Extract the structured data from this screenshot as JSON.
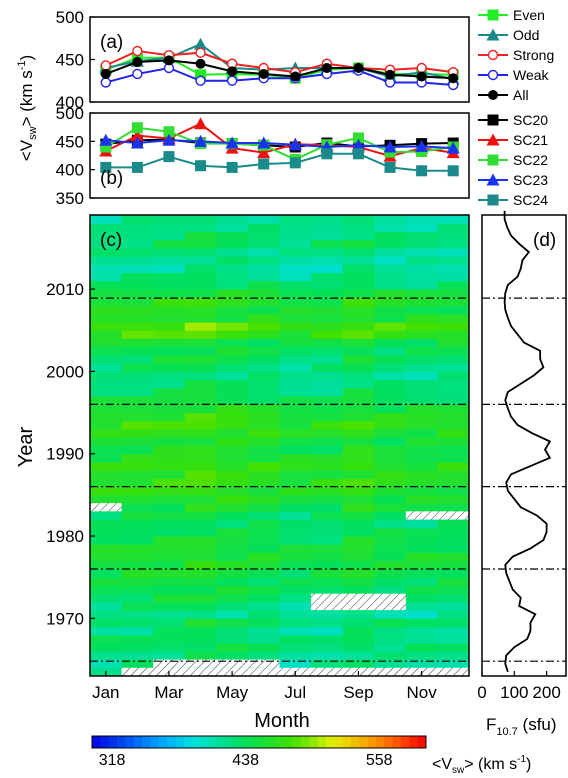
{
  "chart_data": [
    {
      "type": "line",
      "panel_label": "(a)",
      "ylabel": "<V_sw> (km s^-1)",
      "ylim": [
        400,
        500
      ],
      "yticks": [
        "400",
        "450",
        "500"
      ],
      "x": [
        1,
        2,
        3,
        4,
        5,
        6,
        7,
        8,
        9,
        10,
        11,
        12
      ],
      "series": [
        {
          "name": "Even",
          "color": "#22ee22",
          "marker": "square",
          "values": [
            438,
            452,
            452,
            432,
            433,
            432,
            428,
            438,
            440,
            433,
            433,
            432
          ]
        },
        {
          "name": "Odd",
          "color": "#1a8a8a",
          "marker": "triangle",
          "values": [
            440,
            448,
            452,
            468,
            440,
            438,
            440,
            440,
            440,
            430,
            435,
            427
          ]
        },
        {
          "name": "Strong",
          "color": "#ee2222",
          "marker": "open-circle",
          "values": [
            443,
            460,
            455,
            458,
            445,
            440,
            435,
            445,
            440,
            438,
            440,
            435
          ]
        },
        {
          "name": "Weak",
          "color": "#2222ee",
          "marker": "open-circle",
          "values": [
            423,
            433,
            440,
            425,
            425,
            428,
            428,
            433,
            437,
            423,
            423,
            420
          ]
        },
        {
          "name": "All",
          "color": "#000000",
          "marker": "circle",
          "values": [
            433,
            447,
            449,
            445,
            436,
            433,
            430,
            440,
            440,
            432,
            430,
            428
          ]
        }
      ]
    },
    {
      "type": "line",
      "panel_label": "(b)",
      "ylim": [
        350,
        500
      ],
      "yticks": [
        "350",
        "400",
        "450",
        "500"
      ],
      "x": [
        1,
        2,
        3,
        4,
        5,
        6,
        7,
        8,
        9,
        10,
        11,
        12
      ],
      "series": [
        {
          "name": "SC20",
          "color": "#000000",
          "marker": "square",
          "values": [
            445,
            452,
            453,
            447,
            446,
            443,
            440,
            447,
            441,
            443,
            446,
            447
          ]
        },
        {
          "name": "SC21",
          "color": "#ee1111",
          "marker": "triangle",
          "values": [
            433,
            460,
            455,
            481,
            438,
            430,
            445,
            443,
            440,
            424,
            438,
            430
          ]
        },
        {
          "name": "SC22",
          "color": "#33dd33",
          "marker": "square",
          "values": [
            440,
            474,
            467,
            446,
            446,
            443,
            418,
            444,
            456,
            431,
            432,
            440
          ]
        },
        {
          "name": "SC23",
          "color": "#1a33ee",
          "marker": "triangle",
          "values": [
            452,
            447,
            452,
            450,
            447,
            447,
            444,
            440,
            443,
            440,
            441,
            438
          ]
        },
        {
          "name": "SC24",
          "color": "#1a8a8a",
          "marker": "square",
          "values": [
            404,
            404,
            423,
            407,
            404,
            410,
            412,
            428,
            428,
            404,
            398,
            398
          ]
        }
      ]
    },
    {
      "type": "heatmap",
      "panel_label": "(c)",
      "xlabel": "Month",
      "ylabel": "Year",
      "x_tick_labels": [
        "Jan",
        "Mar",
        "May",
        "Jul",
        "Sep",
        "Nov"
      ],
      "x_tick_months": [
        1,
        3,
        5,
        7,
        9,
        11
      ],
      "y_tick_labels": [
        "1970",
        "1980",
        "1990",
        "2000",
        "2010"
      ],
      "y_tick_years": [
        1970,
        1980,
        1990,
        2000,
        2010
      ],
      "year_range": [
        1963,
        2019
      ],
      "ref_lines_years": [
        1964.8,
        1976.0,
        1986.0,
        1996.0,
        2008.9
      ],
      "colorbar": {
        "min": 300,
        "max": 600,
        "tick_values": [
          318,
          438,
          558
        ],
        "tick_labels": [
          "318",
          "438",
          "558"
        ],
        "label": "<V_sw> (km s^-1)"
      },
      "hatched_cells": [
        {
          "year_from": 1963,
          "year_to": 1964,
          "month_from": 2,
          "month_to": 12
        },
        {
          "year_from": 1964,
          "year_to": 1965,
          "month_from": 3,
          "month_to": 6
        },
        {
          "year_from": 1971,
          "year_to": 1973,
          "month_from": 8,
          "month_to": 10
        },
        {
          "year_from": 1982,
          "year_to": 1983,
          "month_from": 11,
          "month_to": 12
        },
        {
          "year_from": 1983,
          "year_to": 1984,
          "month_from": 1,
          "month_to": 1
        }
      ],
      "year_offsets": [
        -30,
        -22,
        -18,
        -10,
        -12,
        -20,
        -8,
        -25,
        -14,
        -6,
        -2,
        0,
        4,
        10,
        12,
        8,
        2,
        -4,
        -10,
        -5,
        6,
        14,
        22,
        26,
        20,
        28,
        16,
        8,
        12,
        20,
        28,
        22,
        10,
        2,
        -8,
        -16,
        -20,
        -12,
        -6,
        -2,
        6,
        30,
        38,
        16,
        12,
        20,
        8,
        -10,
        -18,
        -30,
        -26,
        -20,
        -8,
        -14,
        -20,
        -24
      ],
      "month_offsets": [
        0,
        4,
        6,
        12,
        6,
        2,
        -6,
        -4,
        8,
        -2,
        -4,
        -2
      ]
    },
    {
      "type": "line",
      "panel_label": "(d)",
      "xlabel": "F10.7 (sfu)",
      "xlim": [
        0,
        260
      ],
      "xticks": [
        "0",
        "100",
        "200"
      ],
      "year_range": [
        1963,
        2019
      ],
      "ref_lines_years": [
        1964.8,
        1976.0,
        1986.0,
        1996.0,
        2008.9
      ],
      "series": [
        {
          "name": "F10.7",
          "color": "#000000",
          "years": [
            1963,
            1964,
            1965,
            1966,
            1967,
            1968,
            1969,
            1970,
            1971,
            1972,
            1973,
            1974,
            1975,
            1976,
            1977,
            1978,
            1979,
            1980,
            1981,
            1982,
            1983,
            1984,
            1985,
            1986,
            1987,
            1988,
            1989,
            1990,
            1991,
            1992,
            1993,
            1994,
            1995,
            1996,
            1997,
            1998,
            1999,
            2000,
            2001,
            2002,
            2003,
            2004,
            2005,
            2006,
            2007,
            2008,
            2009,
            2010,
            2011,
            2012,
            2013,
            2014,
            2015,
            2016,
            2017,
            2018,
            2019
          ],
          "values": [
            80,
            72,
            75,
            100,
            140,
            150,
            150,
            165,
            115,
            120,
            95,
            85,
            75,
            72,
            95,
            150,
            190,
            200,
            200,
            170,
            120,
            100,
            80,
            75,
            90,
            150,
            210,
            195,
            210,
            155,
            110,
            90,
            80,
            72,
            80,
            120,
            160,
            190,
            180,
            180,
            130,
            110,
            90,
            80,
            72,
            70,
            72,
            80,
            110,
            120,
            125,
            145,
            115,
            90,
            78,
            70,
            70
          ]
        }
      ]
    }
  ],
  "legend_a": [
    "Even",
    "Odd",
    "Strong",
    "Weak",
    "All"
  ],
  "legend_b": [
    "SC20",
    "SC21",
    "SC22",
    "SC23",
    "SC24"
  ]
}
